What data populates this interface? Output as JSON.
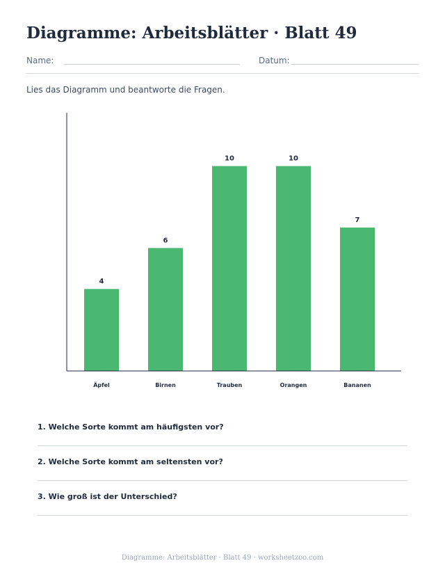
{
  "header": {
    "title": "Diagramme: Arbeitsblätter · Blatt 49",
    "name_label": "Name:",
    "date_label": "Datum:"
  },
  "instructions": "Lies das Diagramm und beantworte die Fragen.",
  "chart_data": {
    "type": "bar",
    "categories": [
      "Äpfel",
      "Birnen",
      "Trauben",
      "Orangen",
      "Bananen"
    ],
    "values": [
      4,
      6,
      10,
      10,
      7
    ],
    "title": "",
    "xlabel": "",
    "ylabel": "",
    "ylim": [
      0,
      12.6
    ],
    "grid": false,
    "bar_color": "#4ab870"
  },
  "questions": [
    {
      "text": "1. Welche Sorte kommt am häufigsten vor?"
    },
    {
      "text": "2. Welche Sorte kommt am seltensten vor?"
    },
    {
      "text": "3. Wie groß ist der Unterschied?"
    }
  ],
  "footer": "Diagramme: Arbeitsblätter · Blatt 49 · worksheetzoo.com"
}
